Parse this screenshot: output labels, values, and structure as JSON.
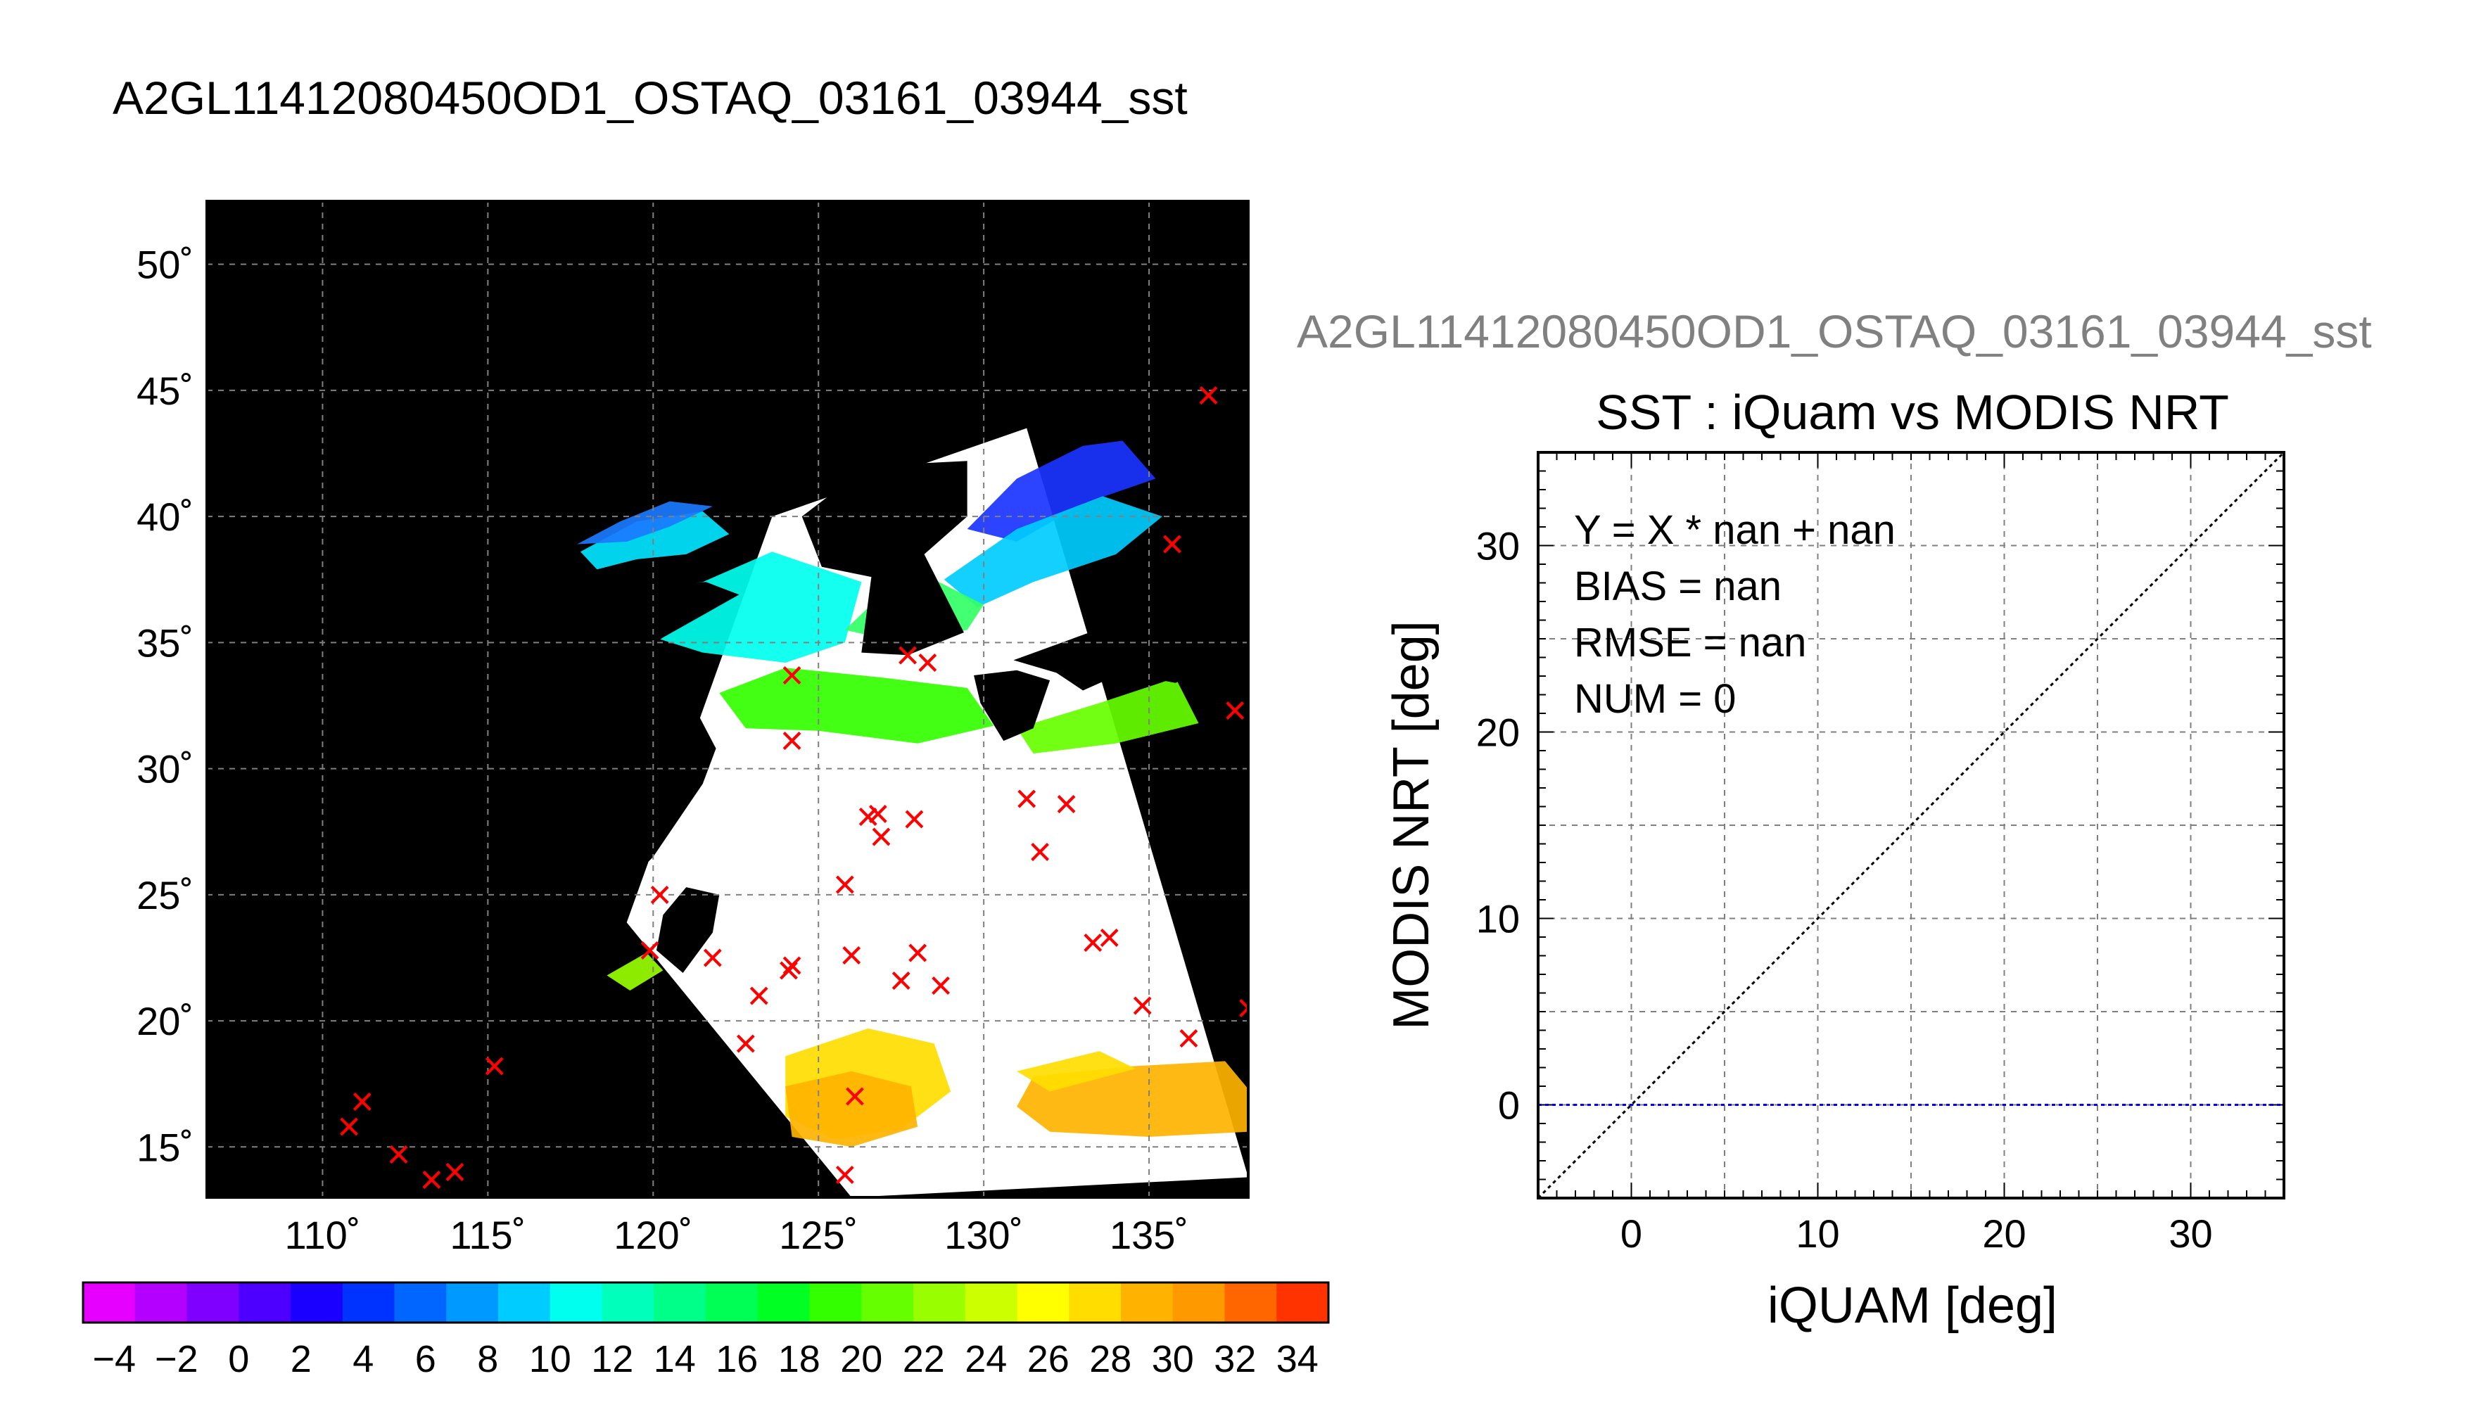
{
  "page": {
    "title": "A2GL11412080450OD1_OSTAQ_03161_03944_sst"
  },
  "chart_data": [
    {
      "type": "map",
      "title": "",
      "x": {
        "min": 106.5,
        "max": 138.0,
        "ticks": [
          110,
          115,
          120,
          125,
          130,
          135
        ],
        "tick_labels": [
          "110˚",
          "115˚",
          "120˚",
          "125˚",
          "130˚",
          "135˚"
        ]
      },
      "y": {
        "min": 13.0,
        "max": 52.5,
        "ticks": [
          15,
          20,
          25,
          30,
          35,
          40,
          45,
          50
        ],
        "tick_labels": [
          "15˚",
          "20˚",
          "25˚",
          "30˚",
          "35˚",
          "40˚",
          "45˚",
          "50˚"
        ]
      },
      "grid": true,
      "background_color": "#000000",
      "swath": {
        "corners": [
          [
            123.6,
            40.0
          ],
          [
            131.3,
            43.5
          ],
          [
            138.0,
            13.8
          ],
          [
            126.0,
            13.0
          ],
          [
            119.2,
            23.9
          ]
        ]
      },
      "observation_markers": [
        {
          "lon": 124.2,
          "lat": 33.6
        },
        {
          "lon": 124.2,
          "lat": 31.0
        },
        {
          "lon": 127.7,
          "lat": 34.4
        },
        {
          "lon": 128.3,
          "lat": 34.1
        },
        {
          "lon": 126.5,
          "lat": 28.0
        },
        {
          "lon": 126.8,
          "lat": 28.1
        },
        {
          "lon": 126.9,
          "lat": 27.2
        },
        {
          "lon": 127.9,
          "lat": 27.9
        },
        {
          "lon": 131.3,
          "lat": 28.7
        },
        {
          "lon": 132.5,
          "lat": 28.5
        },
        {
          "lon": 131.7,
          "lat": 26.6
        },
        {
          "lon": 125.8,
          "lat": 25.3
        },
        {
          "lon": 120.2,
          "lat": 24.9
        },
        {
          "lon": 119.9,
          "lat": 22.7
        },
        {
          "lon": 121.8,
          "lat": 22.4
        },
        {
          "lon": 124.1,
          "lat": 21.9
        },
        {
          "lon": 124.2,
          "lat": 22.1
        },
        {
          "lon": 126.0,
          "lat": 22.5
        },
        {
          "lon": 128.0,
          "lat": 22.6
        },
        {
          "lon": 127.5,
          "lat": 21.5
        },
        {
          "lon": 128.7,
          "lat": 21.3
        },
        {
          "lon": 123.2,
          "lat": 20.9
        },
        {
          "lon": 122.8,
          "lat": 19.0
        },
        {
          "lon": 133.3,
          "lat": 23.0
        },
        {
          "lon": 133.8,
          "lat": 23.2
        },
        {
          "lon": 134.8,
          "lat": 20.5
        },
        {
          "lon": 136.2,
          "lat": 19.2
        },
        {
          "lon": 138.0,
          "lat": 20.4
        },
        {
          "lon": 136.8,
          "lat": 44.7
        },
        {
          "lon": 135.7,
          "lat": 38.8
        },
        {
          "lon": 137.6,
          "lat": 32.2
        },
        {
          "lon": 126.1,
          "lat": 16.9
        },
        {
          "lon": 125.8,
          "lat": 13.8
        },
        {
          "lon": 111.2,
          "lat": 16.7
        },
        {
          "lon": 110.8,
          "lat": 15.7
        },
        {
          "lon": 112.3,
          "lat": 14.6
        },
        {
          "lon": 113.3,
          "lat": 13.6
        },
        {
          "lon": 114.0,
          "lat": 13.9
        },
        {
          "lon": 115.2,
          "lat": 18.1
        }
      ],
      "marker_symbol": "×",
      "marker_color": "#ff0000"
    },
    {
      "type": "colorbar",
      "min": -5,
      "max": 35,
      "tick_values": [
        -4,
        -2,
        0,
        2,
        4,
        6,
        8,
        10,
        12,
        14,
        16,
        18,
        20,
        22,
        24,
        26,
        28,
        30,
        32,
        34
      ],
      "tick_labels": [
        "−4",
        "−2",
        "0",
        "2",
        "4",
        "6",
        "8",
        "10",
        "12",
        "14",
        "16",
        "18",
        "20",
        "22",
        "24",
        "26",
        "28",
        "30",
        "32",
        "34"
      ],
      "colors": [
        "#e600ff",
        "#b300ff",
        "#8000ff",
        "#4d00ff",
        "#1a00ff",
        "#0033ff",
        "#0066ff",
        "#0099ff",
        "#00ccff",
        "#00ffee",
        "#00ffbb",
        "#00ff88",
        "#00ff55",
        "#00ff22",
        "#33ff00",
        "#66ff00",
        "#99ff00",
        "#ccff00",
        "#ffff00",
        "#ffdd00",
        "#ffb300",
        "#ff9900",
        "#ff6600",
        "#ff3300"
      ]
    },
    {
      "type": "scatter",
      "subtitle": "A2GL11412080450OD1_OSTAQ_03161_03944_sst",
      "title": "SST : iQuam vs MODIS NRT",
      "xlabel": "iQUAM [deg]",
      "ylabel": "MODIS NRT [deg]",
      "xlim": [
        -5,
        35
      ],
      "ylim": [
        -5,
        35
      ],
      "xticks": [
        0,
        10,
        20,
        30
      ],
      "yticks": [
        0,
        10,
        20,
        30
      ],
      "grid": true,
      "series": [],
      "reference_lines": [
        {
          "type": "identity",
          "from": [
            -5,
            -5
          ],
          "to": [
            35,
            35
          ],
          "color": "#000000",
          "style": "dotted"
        },
        {
          "type": "horizontal",
          "y": 0,
          "color": "#0000ff",
          "style": "dotted"
        }
      ],
      "stats": {
        "fit": "Y = X * nan + nan",
        "bias": "BIAS = nan",
        "rmse": "RMSE = nan",
        "num": "NUM = 0"
      }
    }
  ]
}
